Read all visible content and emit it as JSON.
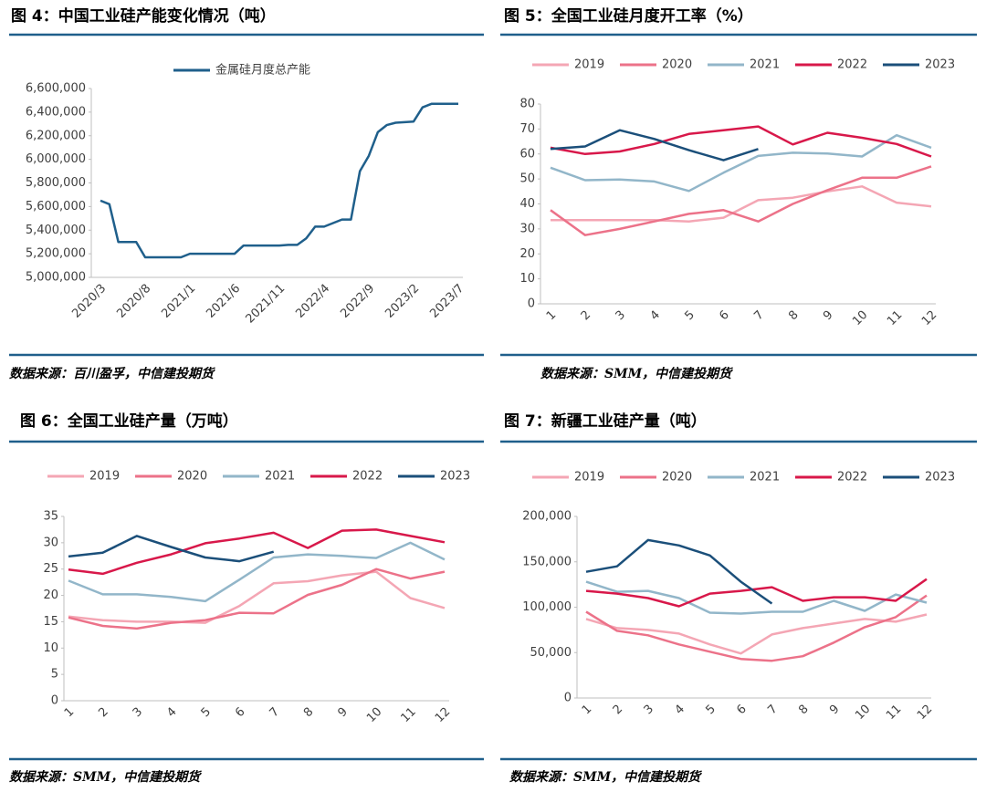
{
  "chart_data": [
    {
      "type": "line",
      "title": "图 4：中国工业硅产能变化情况（吨）",
      "source": "数据来源：百川盈孚，中信建投期货",
      "categories": [
        "2020/3",
        null,
        null,
        null,
        null,
        "2020/8",
        null,
        null,
        null,
        null,
        "2021/1",
        null,
        null,
        null,
        null,
        "2021/6",
        null,
        null,
        null,
        null,
        "2021/11",
        null,
        null,
        null,
        null,
        "2022/4",
        null,
        null,
        null,
        null,
        "2022/9",
        null,
        null,
        null,
        null,
        "2023/2",
        null,
        null,
        null,
        null,
        "2023/7"
      ],
      "series": [
        {
          "name": "金属硅月度总产能",
          "color": "#1f5f8b",
          "values": [
            5650000,
            5620000,
            5300000,
            5300000,
            5300000,
            5170000,
            5170000,
            5170000,
            5170000,
            5170000,
            5200000,
            5200000,
            5200000,
            5200000,
            5200000,
            5200000,
            5270000,
            5270000,
            5270000,
            5270000,
            5270000,
            5275000,
            5275000,
            5330000,
            5430000,
            5430000,
            5460000,
            5490000,
            5490000,
            5900000,
            6030000,
            6230000,
            6290000,
            6310000,
            6315000,
            6320000,
            6440000,
            6470000,
            6470000,
            6470000,
            6470000
          ]
        }
      ],
      "ylim": [
        5000000,
        6600000
      ],
      "yticks": [
        {
          "value": 5000000,
          "label": "5,000,000"
        },
        {
          "value": 5200000,
          "label": "5,200,000"
        },
        {
          "value": 5400000,
          "label": "5,400,000"
        },
        {
          "value": 5600000,
          "label": "5,600,000"
        },
        {
          "value": 5800000,
          "label": "5,800,000"
        },
        {
          "value": 6000000,
          "label": "6,000,000"
        },
        {
          "value": 6200000,
          "label": "6,200,000"
        },
        {
          "value": 6400000,
          "label": "6,400,000"
        },
        {
          "value": 6600000,
          "label": "6,600,000"
        }
      ],
      "grid": false
    },
    {
      "type": "line",
      "title": "图 5：全国工业硅月度开工率（%）",
      "source": "数据来源：SMM，中信建投期货",
      "categories": [
        "1",
        "2",
        "3",
        "4",
        "5",
        "6",
        "7",
        "8",
        "9",
        "10",
        "11",
        "12"
      ],
      "series": [
        {
          "name": "2019",
          "color": "#f4a6b4",
          "values": [
            33.5,
            33.5,
            33.5,
            33.5,
            33,
            34.5,
            41.5,
            42.5,
            45,
            47,
            40.5,
            39
          ]
        },
        {
          "name": "2020",
          "color": "#ec7289",
          "values": [
            37.5,
            27.5,
            30,
            33,
            36,
            37.5,
            33,
            40,
            45.5,
            50.5,
            50.5,
            55
          ]
        },
        {
          "name": "2021",
          "color": "#92b6c9",
          "values": [
            54.5,
            49.5,
            49.8,
            49,
            45.2,
            52.5,
            59.2,
            60.5,
            60.2,
            59,
            67.5,
            62.5
          ]
        },
        {
          "name": "2022",
          "color": "#d8184a",
          "values": [
            62.5,
            60,
            61,
            64,
            68,
            69.5,
            71,
            63.8,
            68.5,
            66.5,
            64,
            59
          ]
        },
        {
          "name": "2023",
          "color": "#1b4f7a",
          "values": [
            62,
            63,
            69.5,
            66,
            61.5,
            57.5,
            62,
            null,
            null,
            null,
            null,
            null
          ]
        }
      ],
      "ylim": [
        0,
        80
      ],
      "yticks": [
        0,
        10,
        20,
        30,
        40,
        50,
        60,
        70,
        80
      ],
      "grid": false
    },
    {
      "type": "line",
      "title": "图 6：全国工业硅产量（万吨）",
      "source": "数据来源：SMM，中信建投期货",
      "categories": [
        "1",
        "2",
        "3",
        "4",
        "5",
        "6",
        "7",
        "8",
        "9",
        "10",
        "11",
        "12"
      ],
      "series": [
        {
          "name": "2019",
          "color": "#f4a6b4",
          "values": [
            16,
            15.3,
            15,
            15,
            14.8,
            18,
            22.3,
            22.7,
            23.8,
            24.5,
            19.5,
            17.6
          ]
        },
        {
          "name": "2020",
          "color": "#ec7289",
          "values": [
            15.8,
            14.2,
            13.7,
            14.8,
            15.3,
            16.7,
            16.6,
            20.1,
            22,
            25,
            23.2,
            24.5
          ]
        },
        {
          "name": "2021",
          "color": "#92b6c9",
          "values": [
            22.8,
            20.2,
            20.2,
            19.7,
            18.9,
            23,
            27.2,
            27.8,
            27.5,
            27.1,
            30,
            26.8
          ]
        },
        {
          "name": "2022",
          "color": "#d8184a",
          "values": [
            24.9,
            24.1,
            26.2,
            27.8,
            29.9,
            30.8,
            31.9,
            29,
            32.3,
            32.5,
            31.3,
            30.1
          ]
        },
        {
          "name": "2023",
          "color": "#1b4f7a",
          "values": [
            27.4,
            28.1,
            31.3,
            29.2,
            27.2,
            26.5,
            28.3,
            null,
            null,
            null,
            null,
            null
          ]
        }
      ],
      "ylim": [
        0,
        35
      ],
      "yticks": [
        0,
        5,
        10,
        15,
        20,
        25,
        30,
        35
      ],
      "grid": false
    },
    {
      "type": "line",
      "title": "图 7：新疆工业硅产量（吨）",
      "source": "数据来源：SMM，中信建投期货",
      "categories": [
        "1",
        "2",
        "3",
        "4",
        "5",
        "6",
        "7",
        "8",
        "9",
        "10",
        "11",
        "12"
      ],
      "series": [
        {
          "name": "2019",
          "color": "#f4a6b4",
          "values": [
            87000,
            77000,
            75000,
            71000,
            59000,
            49000,
            70000,
            77000,
            82000,
            87000,
            84000,
            92000
          ]
        },
        {
          "name": "2020",
          "color": "#ec7289",
          "values": [
            95000,
            74000,
            69000,
            59000,
            51000,
            43000,
            41000,
            46000,
            61000,
            78000,
            89000,
            113000
          ]
        },
        {
          "name": "2021",
          "color": "#92b6c9",
          "values": [
            128000,
            117000,
            118000,
            110000,
            94000,
            93000,
            95000,
            95000,
            107000,
            96000,
            114000,
            105000
          ]
        },
        {
          "name": "2022",
          "color": "#d8184a",
          "values": [
            118000,
            115000,
            110000,
            101000,
            115000,
            118000,
            122000,
            107000,
            111000,
            111000,
            107000,
            131000
          ]
        },
        {
          "name": "2023",
          "color": "#1b4f7a",
          "values": [
            139000,
            145000,
            174000,
            168000,
            157000,
            128000,
            104000,
            null,
            null,
            null,
            null,
            null
          ]
        }
      ],
      "ylim": [
        0,
        200000
      ],
      "yticks": [
        0,
        {
          "value": 50000,
          "label": "50,000"
        },
        {
          "value": 100000,
          "label": "100,000"
        },
        {
          "value": 150000,
          "label": "150,000"
        },
        {
          "value": 200000,
          "label": "200,000"
        }
      ],
      "grid": false
    }
  ]
}
